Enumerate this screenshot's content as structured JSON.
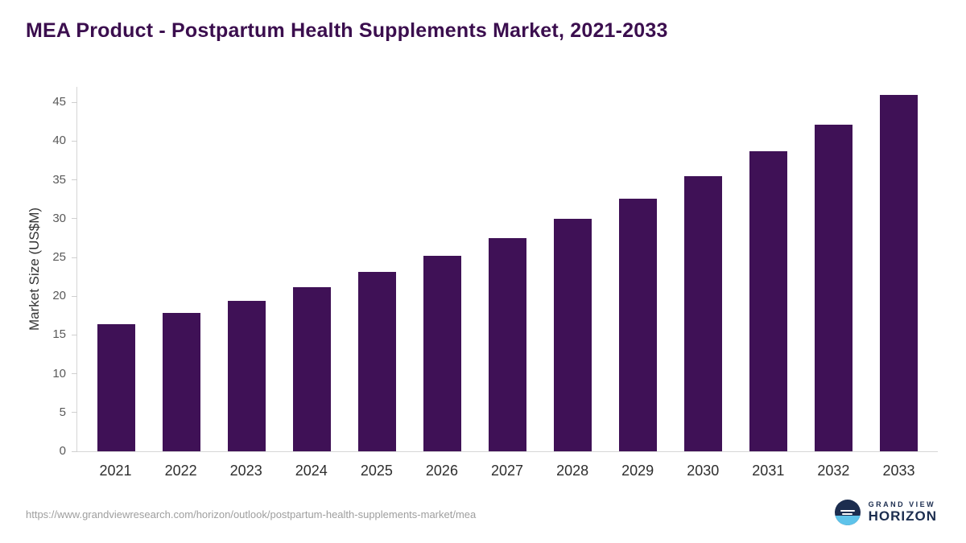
{
  "title": "MEA Product - Postpartum Health Supplements Market, 2021-2033",
  "chart_data": {
    "type": "bar",
    "categories": [
      "2021",
      "2022",
      "2023",
      "2024",
      "2025",
      "2026",
      "2027",
      "2028",
      "2029",
      "2030",
      "2031",
      "2032",
      "2033"
    ],
    "values": [
      16.4,
      17.8,
      19.4,
      21.2,
      23.1,
      25.2,
      27.5,
      30.0,
      32.6,
      35.5,
      38.7,
      42.1,
      46.0
    ],
    "title": "MEA Product - Postpartum Health Supplements Market, 2021-2033",
    "xlabel": "",
    "ylabel": "Market Size (US$M)",
    "ylim": [
      0,
      47
    ],
    "yticks": [
      0,
      5,
      10,
      15,
      20,
      25,
      30,
      35,
      40,
      45
    ],
    "bar_color": "#3f1156",
    "grid": false,
    "legend": "none"
  },
  "footer": {
    "source_url": "https://www.grandviewresearch.com/horizon/outlook/postpartum-health-supplements-market/mea",
    "logo_top": "GRAND VIEW",
    "logo_bottom": "HORIZON"
  },
  "colors": {
    "title_text": "#3b0e4e",
    "bar": "#3f1156",
    "axis_line": "#d6d6d6",
    "tick_text": "#595959",
    "url_text": "#9e9e9e",
    "logo_navy": "#1c2d4f",
    "logo_blue": "#5ec3ea"
  }
}
